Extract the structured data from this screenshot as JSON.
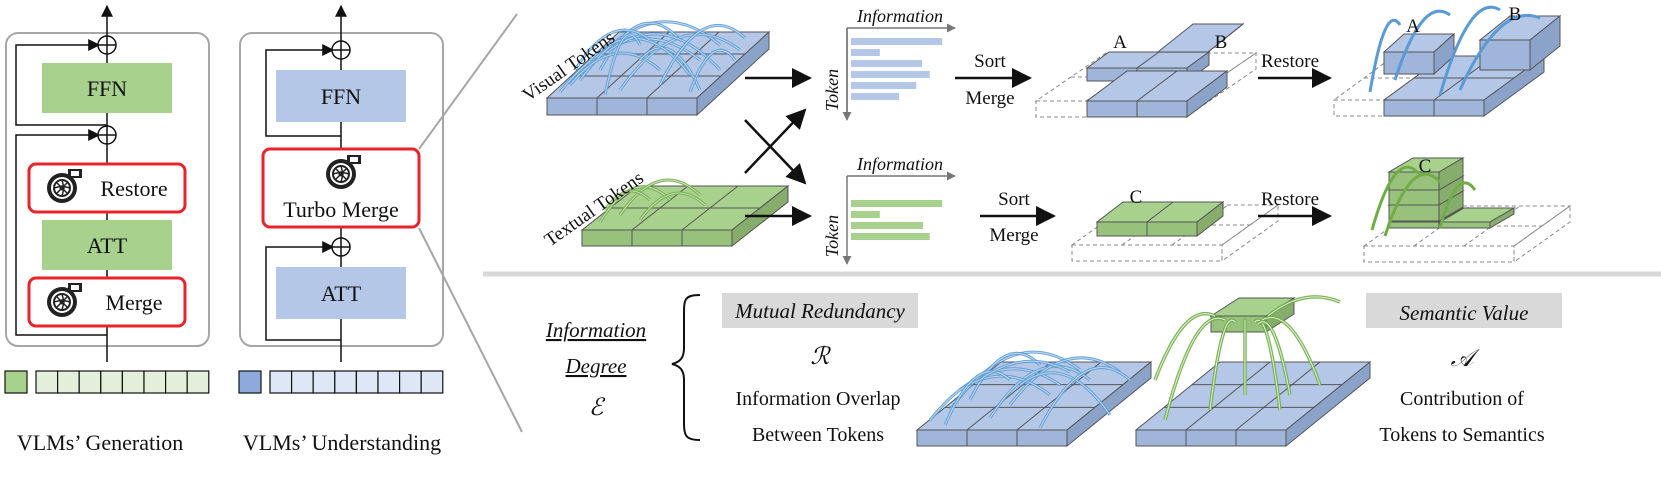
{
  "left_panel": {
    "generation": {
      "blocks": {
        "ffn": "FFN",
        "restore": "Restore",
        "att": "ATT",
        "merge": "Merge"
      },
      "caption": "VLMs’ Generation"
    },
    "understanding": {
      "blocks": {
        "ffn": "FFN",
        "turbo_merge": "Turbo Merge",
        "att": "ATT"
      },
      "caption": "VLMs’ Understanding"
    }
  },
  "top_right": {
    "visual_tokens_label": "Visual Tokens",
    "textual_tokens_label": "Textual Tokens",
    "info_axis_label": "Information",
    "token_axis_label": "Token",
    "sort_label": "Sort",
    "merge_label": "Merge",
    "restore_label": "Restore",
    "visual_merged_labels": [
      "A",
      "B"
    ],
    "visual_restored_labels": [
      "A",
      "B"
    ],
    "textual_merged_labels": [
      "C"
    ],
    "textual_restored_labels": [
      "C"
    ],
    "visual_info_bars": [
      0.95,
      0.3,
      0.74,
      0.82,
      0.68,
      0.5
    ],
    "textual_info_bars": [
      0.95,
      0.3,
      0.75,
      0.82
    ]
  },
  "bottom_right": {
    "information_label": "Information",
    "degree_label": "Degree",
    "degree_symbol": "ℰ",
    "mutual_redundancy_label": "Mutual Redundancy",
    "mutual_redundancy_symbol": "ℛ",
    "mutual_desc_line1": "Information Overlap",
    "mutual_desc_line2": "Between Tokens",
    "semantic_value_label": "Semantic Value",
    "semantic_value_symbol": "𝒜",
    "semantic_desc_line1": "Contribution of",
    "semantic_desc_line2": "Tokens to Semantics"
  },
  "colors": {
    "green_fill": "#a9d18e",
    "blue_fill": "#b4c7e7",
    "highlight_red": "#e8232a",
    "panel_border": "#a6a6a6",
    "grey_box": "#d9d9d9"
  }
}
